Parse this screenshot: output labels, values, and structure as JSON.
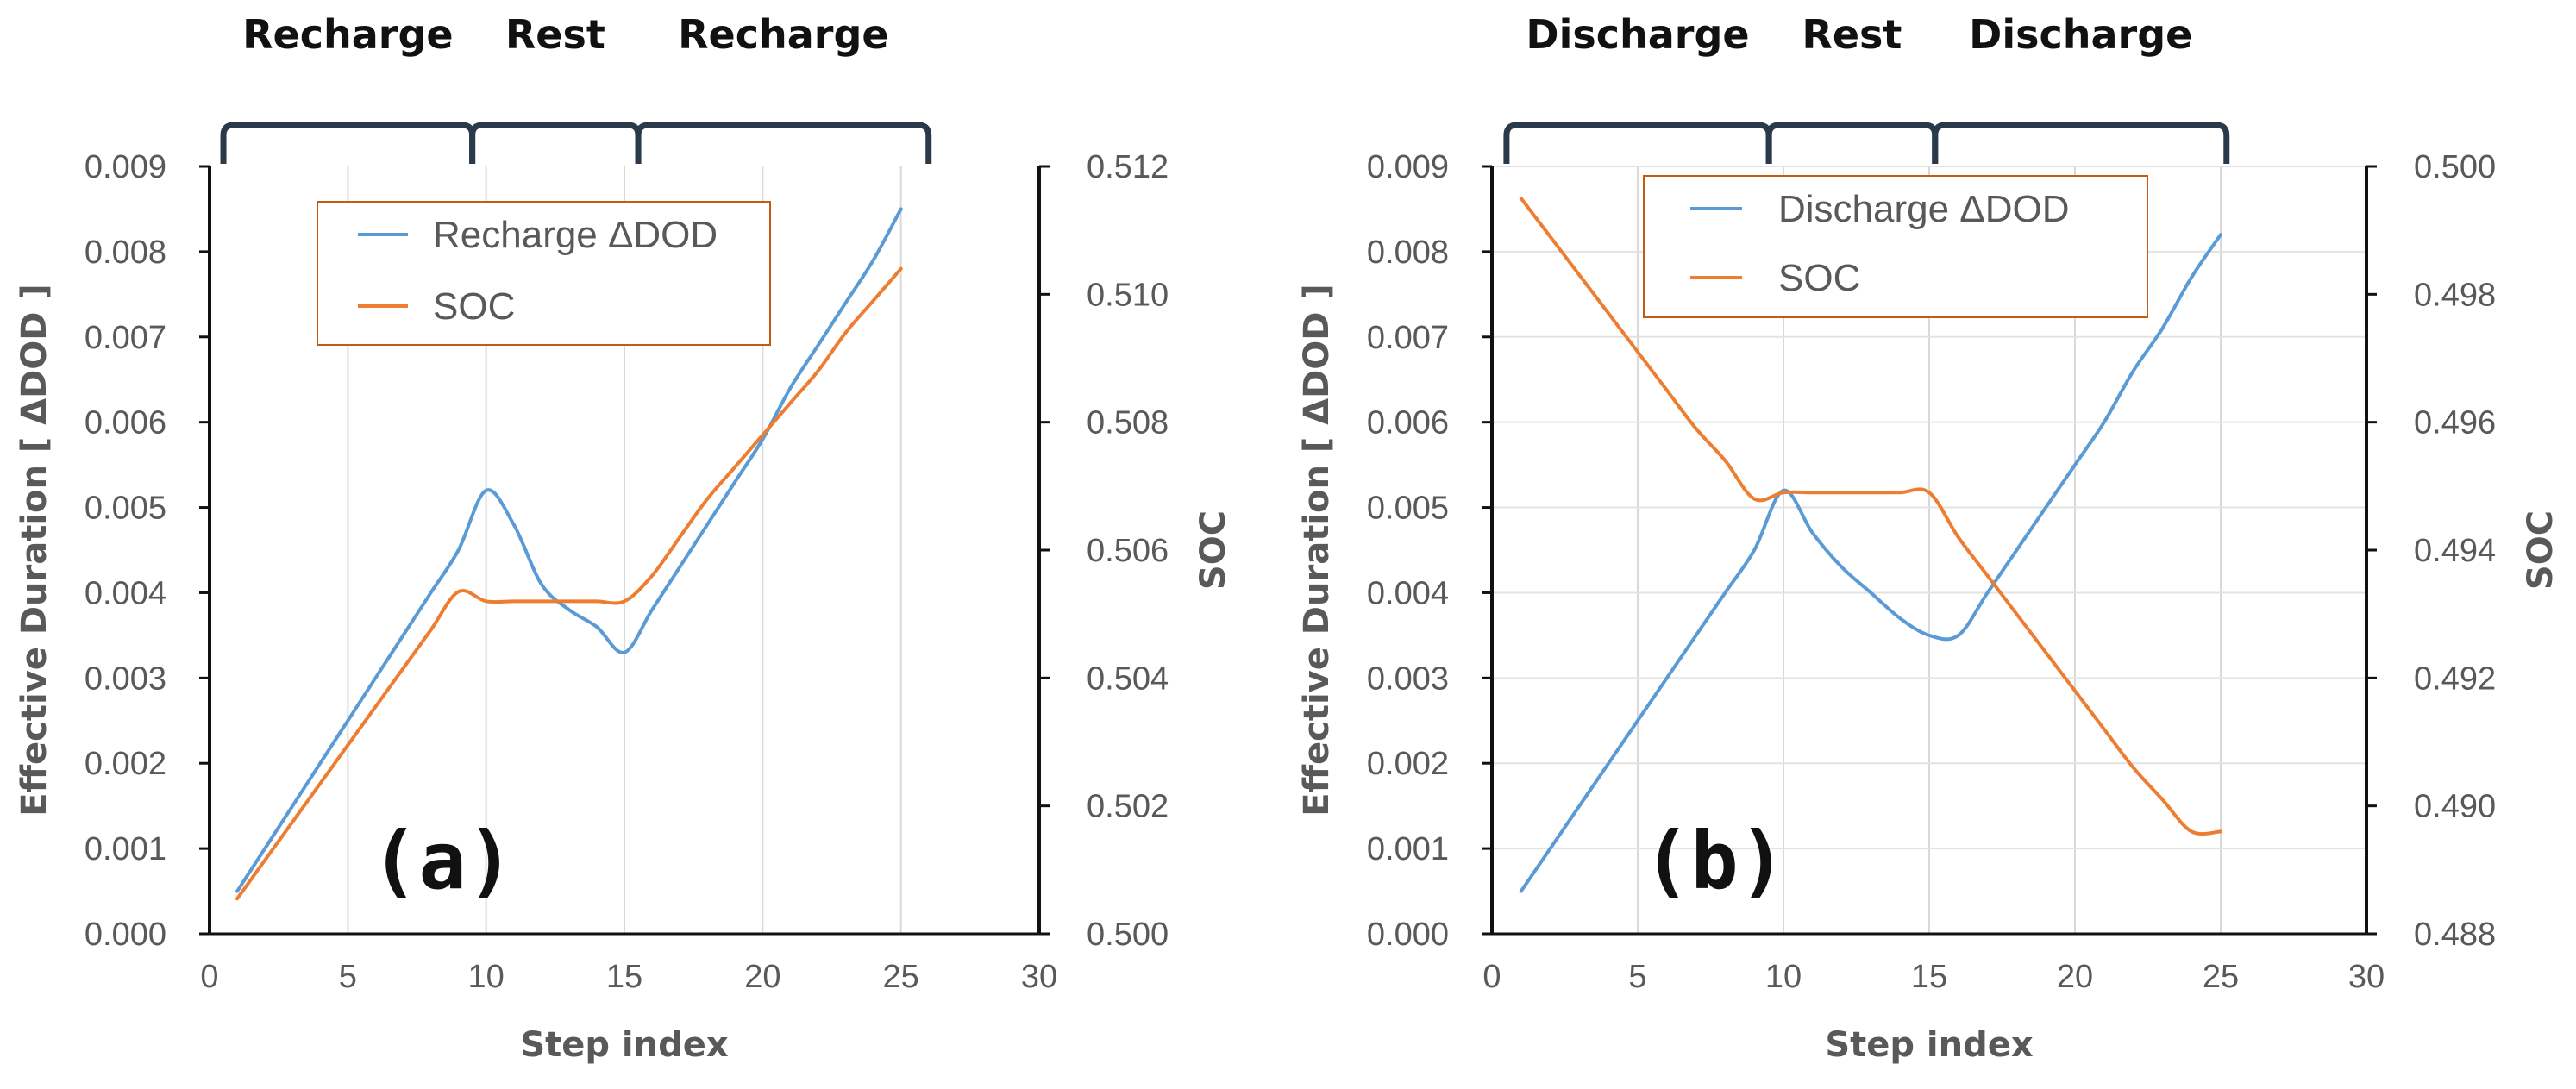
{
  "chart_data": [
    {
      "type": "line",
      "panel_label": "(a)",
      "xlabel": "Step index",
      "ylabel": "Effective Duration [ ΔDOD ]",
      "y2label": "SOC",
      "xlim": [
        0,
        30
      ],
      "ylim": [
        0,
        0.009
      ],
      "y2lim": [
        0.5,
        0.512
      ],
      "x_ticks": [
        "0",
        "5",
        "10",
        "15",
        "20",
        "25",
        "30"
      ],
      "y_ticks": [
        "0.000",
        "0.001",
        "0.002",
        "0.003",
        "0.004",
        "0.005",
        "0.006",
        "0.007",
        "0.008",
        "0.009"
      ],
      "y2_ticks": [
        "0.500",
        "0.502",
        "0.504",
        "0.506",
        "0.508",
        "0.510",
        "0.512"
      ],
      "grid": "vertical",
      "legend_position": "top-left",
      "phases": [
        {
          "label": "Recharge",
          "start": 0.5,
          "end": 9.5
        },
        {
          "label": "Rest",
          "start": 9.5,
          "end": 15.5
        },
        {
          "label": "Recharge",
          "start": 15.5,
          "end": 26
        }
      ],
      "series": [
        {
          "name": "Recharge ΔDOD",
          "axis": "left",
          "color": "#5b9bd5",
          "x": [
            1,
            2,
            3,
            4,
            5,
            6,
            7,
            8,
            9,
            10,
            11,
            12,
            13,
            14,
            15,
            16,
            17,
            18,
            19,
            20,
            21,
            22,
            23,
            24,
            25
          ],
          "values": [
            0.0005,
            0.001,
            0.0015,
            0.002,
            0.0025,
            0.003,
            0.0035,
            0.004,
            0.0045,
            0.0052,
            0.0048,
            0.0041,
            0.0038,
            0.0036,
            0.0033,
            0.0038,
            0.0043,
            0.0048,
            0.0053,
            0.0058,
            0.0064,
            0.0069,
            0.0074,
            0.0079,
            0.0085
          ]
        },
        {
          "name": "SOC",
          "axis": "right",
          "color": "#ed7d31",
          "x": [
            1,
            2,
            3,
            4,
            5,
            6,
            7,
            8,
            9,
            10,
            11,
            12,
            13,
            14,
            15,
            16,
            17,
            18,
            19,
            20,
            21,
            22,
            23,
            24,
            25
          ],
          "values": [
            0.50055,
            0.50115,
            0.50175,
            0.50235,
            0.50295,
            0.50355,
            0.50415,
            0.50475,
            0.50535,
            0.5052,
            0.5052,
            0.5052,
            0.5052,
            0.5052,
            0.5052,
            0.5056,
            0.5062,
            0.5068,
            0.5073,
            0.5078,
            0.5083,
            0.5088,
            0.5094,
            0.5099,
            0.5104
          ]
        }
      ]
    },
    {
      "type": "line",
      "panel_label": "(b)",
      "xlabel": "Step index",
      "ylabel": "Effective Duration [ ΔDOD ]",
      "y2label": "SOC",
      "xlim": [
        0,
        30
      ],
      "ylim": [
        0,
        0.009
      ],
      "y2lim": [
        0.488,
        0.5
      ],
      "x_ticks": [
        "0",
        "5",
        "10",
        "15",
        "20",
        "25",
        "30"
      ],
      "y_ticks": [
        "0.000",
        "0.001",
        "0.002",
        "0.003",
        "0.004",
        "0.005",
        "0.006",
        "0.007",
        "0.008",
        "0.009"
      ],
      "y2_ticks": [
        "0.488",
        "0.490",
        "0.492",
        "0.494",
        "0.496",
        "0.498",
        "0.500"
      ],
      "grid": "both",
      "legend_position": "top-center",
      "phases": [
        {
          "label": "Discharge",
          "start": 0.5,
          "end": 9.5
        },
        {
          "label": "Rest",
          "start": 9.5,
          "end": 15.2
        },
        {
          "label": "Discharge",
          "start": 15.2,
          "end": 25.2
        }
      ],
      "series": [
        {
          "name": "Discharge ΔDOD",
          "axis": "left",
          "color": "#5b9bd5",
          "x": [
            1,
            2,
            3,
            4,
            5,
            6,
            7,
            8,
            9,
            10,
            11,
            12,
            13,
            14,
            15,
            16,
            17,
            18,
            19,
            20,
            21,
            22,
            23,
            24,
            25
          ],
          "values": [
            0.0005,
            0.001,
            0.0015,
            0.002,
            0.0025,
            0.003,
            0.0035,
            0.004,
            0.0045,
            0.0052,
            0.0047,
            0.0043,
            0.004,
            0.0037,
            0.0035,
            0.0035,
            0.004,
            0.0045,
            0.005,
            0.0055,
            0.006,
            0.0066,
            0.0071,
            0.0077,
            0.0082
          ]
        },
        {
          "name": "SOC",
          "axis": "right",
          "color": "#ed7d31",
          "x": [
            1,
            2,
            3,
            4,
            5,
            6,
            7,
            8,
            9,
            10,
            11,
            12,
            13,
            14,
            15,
            16,
            17,
            18,
            19,
            20,
            21,
            22,
            23,
            24,
            25
          ],
          "values": [
            0.4995,
            0.4989,
            0.4983,
            0.4977,
            0.4971,
            0.4965,
            0.4959,
            0.4954,
            0.4948,
            0.4949,
            0.4949,
            0.4949,
            0.4949,
            0.4949,
            0.4949,
            0.4942,
            0.4936,
            0.493,
            0.4924,
            0.4918,
            0.4912,
            0.4906,
            0.4901,
            0.4896,
            0.4896
          ]
        }
      ]
    }
  ]
}
